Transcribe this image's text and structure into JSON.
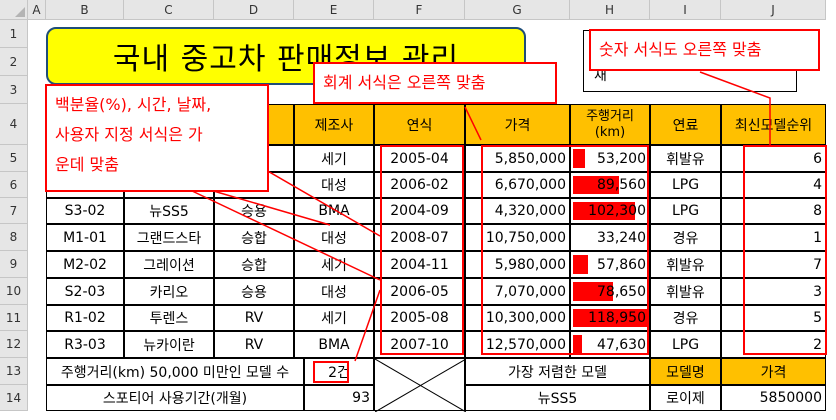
{
  "columns": [
    "A",
    "B",
    "C",
    "D",
    "E",
    "F",
    "G",
    "H",
    "I",
    "J"
  ],
  "rows": [
    "1",
    "2",
    "3",
    "4",
    "5",
    "6",
    "7",
    "8",
    "9",
    "10",
    "11",
    "12",
    "13",
    "14"
  ],
  "title": "국내 중고차 판매정보 관리",
  "approval_label": "재",
  "headers": {
    "maker": "제조사",
    "year": "연식",
    "price": "가격",
    "mileage_line1": "주행거리",
    "mileage_line2": "(km)",
    "fuel": "연료",
    "rank": "최신모델순위"
  },
  "table_rows": [
    {
      "code": "",
      "model": "",
      "type": "",
      "maker": "세기",
      "year": "2005-04",
      "price": "5,850,000",
      "mileage": "53,200",
      "mileage_fraction": 0.16,
      "fuel": "휘발유",
      "rank": "6"
    },
    {
      "code": "",
      "model": "",
      "type": "",
      "maker": "대성",
      "year": "2006-02",
      "price": "6,670,000",
      "mileage": "89,560",
      "mileage_fraction": 0.61,
      "fuel": "LPG",
      "rank": "4"
    },
    {
      "code": "S3-02",
      "model": "뉴SS5",
      "type": "승용",
      "maker": "BMA",
      "year": "2004-09",
      "price": "4,320,000",
      "mileage": "102,300",
      "mileage_fraction": 0.82,
      "fuel": "LPG",
      "rank": "8"
    },
    {
      "code": "M1-01",
      "model": "그랜드스타",
      "type": "승합",
      "maker": "대성",
      "year": "2008-07",
      "price": "10,750,000",
      "mileage": "33,240",
      "mileage_fraction": 0,
      "fuel": "경유",
      "rank": "1"
    },
    {
      "code": "M2-02",
      "model": "그레이션",
      "type": "승합",
      "maker": "세기",
      "year": "2004-11",
      "price": "5,980,000",
      "mileage": "57,860",
      "mileage_fraction": 0.2,
      "fuel": "휘발유",
      "rank": "7"
    },
    {
      "code": "S2-03",
      "model": "카리오",
      "type": "승용",
      "maker": "대성",
      "year": "2006-05",
      "price": "7,070,000",
      "mileage": "78,650",
      "mileage_fraction": 0.53,
      "fuel": "휘발유",
      "rank": "3"
    },
    {
      "code": "R1-02",
      "model": "투렌스",
      "type": "RV",
      "maker": "세기",
      "year": "2005-08",
      "price": "10,300,000",
      "mileage": "118,950",
      "mileage_fraction": 0.97,
      "fuel": "경유",
      "rank": "5"
    },
    {
      "code": "R3-03",
      "model": "뉴카이란",
      "type": "RV",
      "maker": "BMA",
      "year": "2007-10",
      "price": "12,570,000",
      "mileage": "47,630",
      "mileage_fraction": 0.12,
      "fuel": "LPG",
      "rank": "2"
    }
  ],
  "summary": {
    "label1": "주행거리(km) 50,000 미만인 모델 수",
    "value1": "2건",
    "label2": "스포티어 사용기간(개월)",
    "value2": "93",
    "cheapest_label": "가장 저렴한 모델",
    "cheapest_value": "뉴SS5",
    "model_name_header": "모델명",
    "price_header": "가격",
    "model_name_value": "로이제",
    "price_value": "5850000"
  },
  "callouts": {
    "accounting": "회계 서식은 오른쪽 맞춤",
    "number": "숫자 서식도 오른쪽 맞춤",
    "percent": "백분율(%), 시간, 날짜,\n사용자 지정 서식은 가\n운데 맞춤"
  },
  "colors": {
    "header_fill": "#ffc000",
    "title_fill": "#ffff00",
    "databar": "#ff0000",
    "callout": "#ff0000"
  }
}
